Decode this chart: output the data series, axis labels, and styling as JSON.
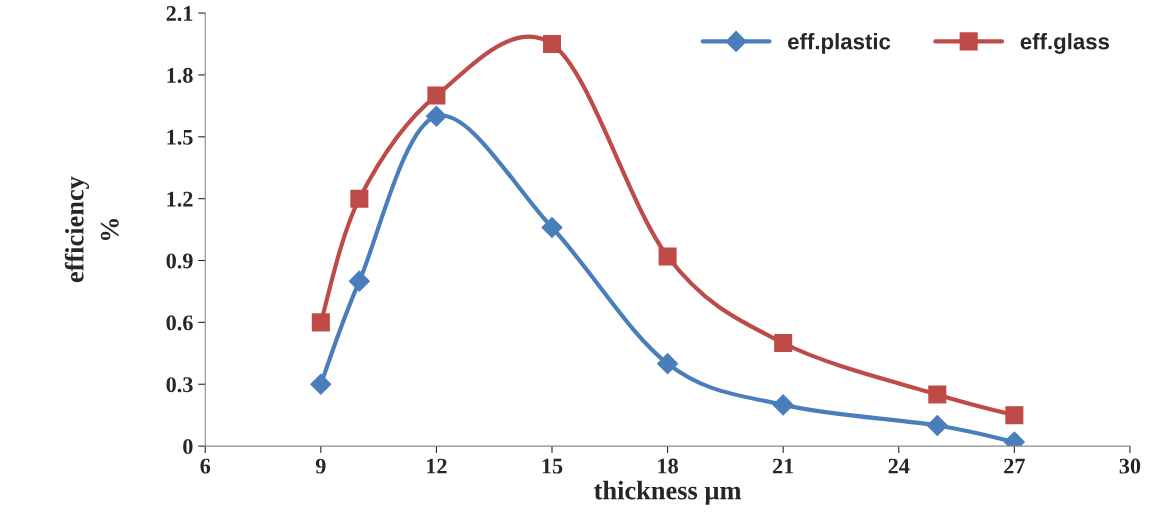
{
  "chart_data": {
    "type": "line",
    "xlabel": "thickness µm",
    "ylabel": "efficiency\n%",
    "x": [
      9,
      10,
      12,
      15,
      18,
      21,
      25,
      27
    ],
    "series": [
      {
        "name": "eff.plastic",
        "color": "#4a7ebb",
        "marker": "diamond",
        "values": [
          0.3,
          0.8,
          1.6,
          1.06,
          0.4,
          0.2,
          0.1,
          0.02
        ]
      },
      {
        "name": "eff.glass",
        "color": "#be4b48",
        "marker": "square",
        "values": [
          0.6,
          1.2,
          1.7,
          1.95,
          0.92,
          0.5,
          0.25,
          0.15
        ]
      }
    ],
    "xlim": [
      6,
      30
    ],
    "xticks": [
      6,
      9,
      12,
      15,
      18,
      21,
      24,
      27,
      30
    ],
    "ylim": [
      0,
      2.1
    ],
    "yticks": [
      0,
      0.3,
      0.6,
      0.9,
      1.2,
      1.5,
      1.8,
      2.1
    ],
    "grid": false,
    "legend": "top right",
    "line_style": "solid"
  }
}
